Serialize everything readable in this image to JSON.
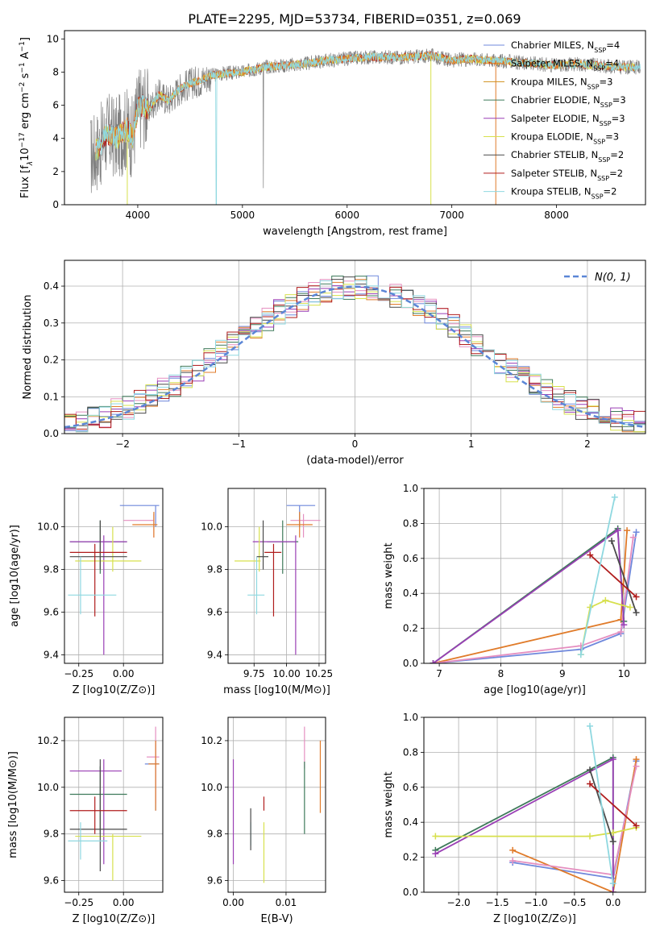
{
  "figure_title": "PLATE=2295, MJD=53734, FIBERID=0351, z=0.069",
  "colors": {
    "Chabrier MILES": "#6f88dc",
    "Salpeter MILES": "#e07b2a",
    "Kroupa MILES": "#d08e1a",
    "Chabrier ELODIE": "#3e7a5a",
    "Salpeter ELODIE": "#9a3fb5",
    "Kroupa ELODIE": "#d7e04d",
    "Chabrier STELIB": "#4a4a4a",
    "Salpeter STELIB": "#b01c1c",
    "Kroupa STELIB": "#8fd8e0",
    "pink": "#e58fc0",
    "data": "#808080",
    "normal": "#5b86d6"
  },
  "chart_data": [
    {
      "id": "spectrum",
      "type": "line",
      "title": "",
      "xlabel": "wavelength [Angstrom, rest frame]",
      "ylabel_parts": [
        "Flux [f",
        "λ",
        "10",
        "−17",
        " erg cm",
        "−2",
        " s",
        "−1",
        " A",
        "−1",
        "]"
      ],
      "xlim": [
        3300,
        8850
      ],
      "ylim": [
        0,
        10.5
      ],
      "xticks": [
        4000,
        5000,
        6000,
        7000,
        8000
      ],
      "yticks": [
        0,
        2,
        4,
        6,
        8,
        10
      ],
      "continuum": {
        "x": [
          3550,
          3650,
          3700,
          3800,
          3900,
          3950,
          4000,
          4050,
          4100,
          4200,
          4300,
          4400,
          4500,
          4600,
          4700,
          4800,
          5000,
          5200,
          5400,
          5600,
          5800,
          6000,
          6200,
          6400,
          6600,
          6800,
          7000,
          7200,
          7400,
          7600,
          7800,
          8000,
          8200,
          8400,
          8600,
          8800
        ],
        "y": [
          2.9,
          3.6,
          4.3,
          4.0,
          4.6,
          4.0,
          5.8,
          6.0,
          5.7,
          6.6,
          6.3,
          7.0,
          7.3,
          7.5,
          7.8,
          7.9,
          8.0,
          8.3,
          8.4,
          8.5,
          8.7,
          8.8,
          8.9,
          8.9,
          8.9,
          9.0,
          8.7,
          8.8,
          8.7,
          8.6,
          8.5,
          8.4,
          8.5,
          8.4,
          8.3,
          8.3
        ]
      },
      "legend": [
        {
          "label": "Chabrier MILES, N",
          "sub": "SSP",
          "n": "4"
        },
        {
          "label": "Salpeter MILES, N",
          "sub": "SSP",
          "n": "4"
        },
        {
          "label": "Kroupa MILES, N",
          "sub": "SSP",
          "n": "3"
        },
        {
          "label": "Chabrier ELODIE, N",
          "sub": "SSP",
          "n": "3"
        },
        {
          "label": "Salpeter ELODIE, N",
          "sub": "SSP",
          "n": "3"
        },
        {
          "label": "Kroupa ELODIE, N",
          "sub": "SSP",
          "n": "3"
        },
        {
          "label": "Chabrier STELIB, N",
          "sub": "SSP",
          "n": "2"
        },
        {
          "label": "Salpeter STELIB, N",
          "sub": "SSP",
          "n": "2"
        },
        {
          "label": "Kroupa STELIB, N",
          "sub": "SSP",
          "n": "2"
        }
      ],
      "legend_location": "upper-right"
    },
    {
      "id": "residuals",
      "type": "histogram",
      "xlabel": "(data-model)/error",
      "ylabel": "Normed distribution",
      "xlim": [
        -2.5,
        2.5
      ],
      "ylim": [
        0,
        0.47
      ],
      "xticks": [
        -2,
        -1,
        0,
        1,
        2
      ],
      "xtick_labels": [
        "−2",
        "−1",
        "0",
        "1",
        "2"
      ],
      "yticks": [
        0,
        0.1,
        0.2,
        0.3,
        0.4
      ],
      "ytick_labels": [
        "0.0",
        "0.1",
        "0.2",
        "0.3",
        "0.4"
      ],
      "bin_width": 0.1,
      "grid": true,
      "legend_label": "N(0, 1)",
      "legend_location": "upper-right"
    },
    {
      "id": "age-vs-Z",
      "type": "errorbar",
      "xlabel": "Z [log10(Z/Z⊙)]",
      "ylabel": "age  [log10(age/yr)]",
      "xlim": [
        -0.33,
        0.22
      ],
      "ylim": [
        9.36,
        10.18
      ],
      "xticks": [
        -0.25,
        0.0
      ],
      "xtick_labels": [
        "−0.25",
        "0.00"
      ],
      "yticks": [
        9.4,
        9.6,
        9.8,
        10.0
      ],
      "ytick_labels": [
        "9.4",
        "9.6",
        "9.8",
        "10.0"
      ],
      "points": [
        {
          "color": "Chabrier MILES",
          "x": 0.18,
          "xerr": [
            0.2,
            0.02
          ],
          "y": 10.1,
          "yerr": [
            0.1,
            0.0
          ]
        },
        {
          "color": "pink",
          "x": 0.17,
          "xerr": [
            0.17,
            0.0
          ],
          "y": 10.03,
          "yerr": [
            0.08,
            0.03
          ]
        },
        {
          "color": "Salpeter MILES",
          "x": 0.17,
          "xerr": [
            0.12,
            0.02
          ],
          "y": 10.01,
          "yerr": [
            0.06,
            0.06
          ]
        },
        {
          "color": "Chabrier ELODIE",
          "x": -0.13,
          "xerr": [
            0.17,
            0.15
          ],
          "y": 9.93,
          "yerr": [
            0.15,
            0.1
          ]
        },
        {
          "color": "Salpeter ELODIE",
          "x": -0.11,
          "xerr": [
            0.19,
            0.13
          ],
          "y": 9.93,
          "yerr": [
            0.53,
            0.03
          ]
        },
        {
          "color": "Kroupa ELODIE",
          "x": -0.06,
          "xerr": [
            0.21,
            0.16
          ],
          "y": 9.84,
          "yerr": [
            0.05,
            0.16
          ]
        },
        {
          "color": "Chabrier STELIB",
          "x": -0.13,
          "xerr": [
            0.17,
            0.15
          ],
          "y": 9.86,
          "yerr": [
            0.06,
            0.17
          ]
        },
        {
          "color": "Salpeter STELIB",
          "x": -0.16,
          "xerr": [
            0.14,
            0.18
          ],
          "y": 9.88,
          "yerr": [
            0.3,
            0.04
          ]
        },
        {
          "color": "Kroupa STELIB",
          "x": -0.24,
          "xerr": [
            0.07,
            0.2
          ],
          "y": 9.68,
          "yerr": [
            0.09,
            0.18
          ]
        }
      ]
    },
    {
      "id": "age-vs-mass",
      "type": "errorbar",
      "xlabel": "mass [log10(M/M⊙)]",
      "ylabel": "",
      "xlim": [
        9.55,
        10.3
      ],
      "ylim": [
        9.36,
        10.18
      ],
      "xticks": [
        9.75,
        10.0,
        10.25
      ],
      "xtick_labels": [
        "9.75",
        "10.00",
        "10.25"
      ],
      "yticks": [
        9.4,
        9.6,
        9.8,
        10.0
      ],
      "ytick_labels": [
        "9.4",
        "9.6",
        "9.8",
        "10.0"
      ],
      "points": [
        {
          "color": "Chabrier MILES",
          "x": 10.1,
          "xerr": [
            0.1,
            0.12
          ],
          "y": 10.1,
          "yerr": [
            0.1,
            0.0
          ]
        },
        {
          "color": "pink",
          "x": 10.13,
          "xerr": [
            0.1,
            0.13
          ],
          "y": 10.03,
          "yerr": [
            0.08,
            0.03
          ]
        },
        {
          "color": "Salpeter MILES",
          "x": 10.1,
          "xerr": [
            0.1,
            0.1
          ],
          "y": 10.01,
          "yerr": [
            0.06,
            0.06
          ]
        },
        {
          "color": "Chabrier ELODIE",
          "x": 9.97,
          "xerr": [
            0.12,
            0.12
          ],
          "y": 9.93,
          "yerr": [
            0.15,
            0.1
          ]
        },
        {
          "color": "Salpeter ELODIE",
          "x": 10.07,
          "xerr": [
            0.33,
            0.0
          ],
          "y": 9.93,
          "yerr": [
            0.53,
            0.03
          ]
        },
        {
          "color": "Kroupa ELODIE",
          "x": 9.79,
          "xerr": [
            0.19,
            0.01
          ],
          "y": 9.84,
          "yerr": [
            0.05,
            0.16
          ]
        },
        {
          "color": "Chabrier STELIB",
          "x": 9.82,
          "xerr": [
            0.05,
            0.04
          ],
          "y": 9.86,
          "yerr": [
            0.06,
            0.17
          ]
        },
        {
          "color": "Salpeter STELIB",
          "x": 9.9,
          "xerr": [
            0.07,
            0.06
          ],
          "y": 9.88,
          "yerr": [
            0.3,
            0.04
          ]
        },
        {
          "color": "Kroupa STELIB",
          "x": 9.77,
          "xerr": [
            0.07,
            0.06
          ],
          "y": 9.68,
          "yerr": [
            0.09,
            0.18
          ]
        }
      ]
    },
    {
      "id": "weights-vs-age",
      "type": "line",
      "xlabel": "age  [log10(age/yr)]",
      "ylabel": "mass weight",
      "xlim": [
        6.75,
        10.35
      ],
      "ylim": [
        0,
        1.0
      ],
      "xticks": [
        7,
        8,
        9,
        10
      ],
      "yticks": [
        0,
        0.2,
        0.4,
        0.6,
        0.8,
        1.0
      ],
      "ytick_labels": [
        "0.0",
        "0.2",
        "0.4",
        "0.6",
        "0.8",
        "1.0"
      ],
      "series": [
        {
          "color": "Chabrier MILES",
          "x": [
            6.9,
            9.3,
            9.95,
            10.2
          ],
          "y": [
            0.0,
            0.08,
            0.17,
            0.75
          ]
        },
        {
          "color": "Salpeter MILES",
          "x": [
            6.9,
            9.95,
            10.05
          ],
          "y": [
            0.0,
            0.25,
            0.76
          ]
        },
        {
          "color": "pink",
          "x": [
            6.9,
            9.3,
            9.95,
            10.15
          ],
          "y": [
            0.0,
            0.1,
            0.18,
            0.72
          ]
        },
        {
          "color": "Chabrier ELODIE",
          "x": [
            6.9,
            9.9,
            10.0
          ],
          "y": [
            0.0,
            0.77,
            0.24
          ]
        },
        {
          "color": "Salpeter ELODIE",
          "x": [
            6.9,
            9.9,
            10.0
          ],
          "y": [
            0.0,
            0.76,
            0.22
          ]
        },
        {
          "color": "Kroupa ELODIE",
          "x": [
            9.3,
            9.45,
            9.7,
            10.1
          ],
          "y": [
            0.05,
            0.32,
            0.36,
            0.32
          ]
        },
        {
          "color": "Chabrier STELIB",
          "x": [
            9.8,
            10.2
          ],
          "y": [
            0.7,
            0.29
          ]
        },
        {
          "color": "Salpeter STELIB",
          "x": [
            9.45,
            10.2
          ],
          "y": [
            0.62,
            0.38
          ]
        },
        {
          "color": "Kroupa STELIB",
          "x": [
            9.3,
            9.85
          ],
          "y": [
            0.05,
            0.95
          ]
        }
      ]
    },
    {
      "id": "mass-vs-Z",
      "type": "errorbar",
      "xlabel": "Z [log10(Z/Z⊙)]",
      "ylabel": "mass [log10(M/M⊙)]",
      "xlim": [
        -0.33,
        0.22
      ],
      "ylim": [
        9.55,
        10.3
      ],
      "xticks": [
        -0.25,
        0.0
      ],
      "xtick_labels": [
        "−0.25",
        "0.00"
      ],
      "yticks": [
        9.6,
        9.8,
        10.0,
        10.2
      ],
      "ytick_labels": [
        "9.6",
        "9.8",
        "10.0",
        "10.2"
      ],
      "points": [
        {
          "color": "Chabrier MILES",
          "x": 0.18,
          "xerr": [
            0.06,
            0.02
          ],
          "y": 10.1,
          "yerr": [
            0.2,
            0.1
          ]
        },
        {
          "color": "pink",
          "x": 0.18,
          "xerr": [
            0.05,
            0.02
          ],
          "y": 10.13,
          "yerr": [
            0.2,
            0.13
          ]
        },
        {
          "color": "Salpeter MILES",
          "x": 0.18,
          "xerr": [
            0.04,
            0.02
          ],
          "y": 10.1,
          "yerr": [
            0.2,
            0.1
          ]
        },
        {
          "color": "Chabrier ELODIE",
          "x": -0.13,
          "xerr": [
            0.17,
            0.15
          ],
          "y": 9.97,
          "yerr": [
            0.17,
            0.12
          ]
        },
        {
          "color": "Salpeter ELODIE",
          "x": -0.11,
          "xerr": [
            0.19,
            0.1
          ],
          "y": 10.07,
          "yerr": [
            0.4,
            0.05
          ]
        },
        {
          "color": "Kroupa ELODIE",
          "x": -0.06,
          "xerr": [
            0.21,
            0.16
          ],
          "y": 9.79,
          "yerr": [
            0.19,
            0.01
          ]
        },
        {
          "color": "Chabrier STELIB",
          "x": -0.13,
          "xerr": [
            0.17,
            0.15
          ],
          "y": 9.82,
          "yerr": [
            0.18,
            0.3
          ]
        },
        {
          "color": "Salpeter STELIB",
          "x": -0.16,
          "xerr": [
            0.14,
            0.18
          ],
          "y": 9.9,
          "yerr": [
            0.1,
            0.06
          ]
        },
        {
          "color": "Kroupa STELIB",
          "x": -0.24,
          "xerr": [
            0.07,
            0.15
          ],
          "y": 9.77,
          "yerr": [
            0.08,
            0.08
          ]
        }
      ]
    },
    {
      "id": "mass-vs-EBV",
      "type": "errorbar",
      "xlabel": "E(B-V)",
      "ylabel": "",
      "xlim": [
        -0.001,
        0.0175
      ],
      "ylim": [
        9.55,
        10.3
      ],
      "xticks": [
        0.0,
        0.01
      ],
      "xtick_labels": [
        "0.00",
        "0.01"
      ],
      "yticks": [
        9.6,
        9.8,
        10.0,
        10.2
      ],
      "ytick_labels": [
        "9.6",
        "9.8",
        "10.0",
        "10.2"
      ],
      "points": [
        {
          "color": "Salpeter ELODIE",
          "x": 0.0,
          "y": 9.9,
          "yerr": [
            0.23,
            0.22
          ]
        },
        {
          "color": "Kroupa STELIB",
          "x": 0.0033,
          "y": 9.8,
          "yerr": [
            0.05,
            0.05
          ]
        },
        {
          "color": "Chabrier STELIB",
          "x": 0.0033,
          "y": 9.8,
          "yerr": [
            0.07,
            0.11
          ]
        },
        {
          "color": "Kroupa ELODIE",
          "x": 0.0058,
          "y": 9.78,
          "yerr": [
            0.19,
            0.07
          ]
        },
        {
          "color": "Salpeter STELIB",
          "x": 0.0058,
          "y": 9.9,
          "yerr": [
            0.0,
            0.06
          ]
        },
        {
          "color": "pink",
          "x": 0.0135,
          "y": 10.13,
          "yerr": [
            0.05,
            0.13
          ]
        },
        {
          "color": "Chabrier ELODIE",
          "x": 0.0135,
          "y": 9.97,
          "yerr": [
            0.17,
            0.14
          ]
        },
        {
          "color": "Salpeter MILES",
          "x": 0.0165,
          "y": 10.1,
          "yerr": [
            0.21,
            0.1
          ]
        }
      ]
    },
    {
      "id": "weights-vs-Z",
      "type": "line",
      "xlabel": "Z [log10(Z/Z⊙)]",
      "ylabel": "mass weight",
      "xlim": [
        -2.45,
        0.42
      ],
      "ylim": [
        0,
        1.0
      ],
      "xticks": [
        -2.0,
        -1.5,
        -1.0,
        -0.5,
        0.0
      ],
      "xtick_labels": [
        "−2.0",
        "−1.5",
        "−1.0",
        "−0.5",
        "0.0"
      ],
      "yticks": [
        0,
        0.2,
        0.4,
        0.6,
        0.8,
        1.0
      ],
      "ytick_labels": [
        "0.0",
        "0.2",
        "0.4",
        "0.6",
        "0.8",
        "1.0"
      ],
      "series": [
        {
          "color": "Chabrier MILES",
          "x": [
            -1.3,
            0.0,
            0.3
          ],
          "y": [
            0.17,
            0.08,
            0.75
          ]
        },
        {
          "color": "Salpeter MILES",
          "x": [
            -1.3,
            0.0,
            0.3
          ],
          "y": [
            0.24,
            0.0,
            0.76
          ]
        },
        {
          "color": "pink",
          "x": [
            -1.3,
            0.0,
            0.3
          ],
          "y": [
            0.18,
            0.1,
            0.72
          ]
        },
        {
          "color": "Chabrier ELODIE",
          "x": [
            -2.3,
            0.0,
            0.0
          ],
          "y": [
            0.24,
            0.77,
            0.0
          ]
        },
        {
          "color": "Salpeter ELODIE",
          "x": [
            -2.3,
            0.0,
            0.0
          ],
          "y": [
            0.22,
            0.76,
            0.0
          ]
        },
        {
          "color": "Kroupa ELODIE",
          "x": [
            -2.3,
            -0.3,
            0.0,
            0.3
          ],
          "y": [
            0.32,
            0.32,
            0.34,
            0.37
          ]
        },
        {
          "color": "Chabrier STELIB",
          "x": [
            -0.3,
            0.0
          ],
          "y": [
            0.7,
            0.29
          ]
        },
        {
          "color": "Salpeter STELIB",
          "x": [
            -0.3,
            0.3
          ],
          "y": [
            0.62,
            0.38
          ]
        },
        {
          "color": "Kroupa STELIB",
          "x": [
            -0.3,
            0.0
          ],
          "y": [
            0.95,
            0.05
          ]
        }
      ]
    }
  ]
}
